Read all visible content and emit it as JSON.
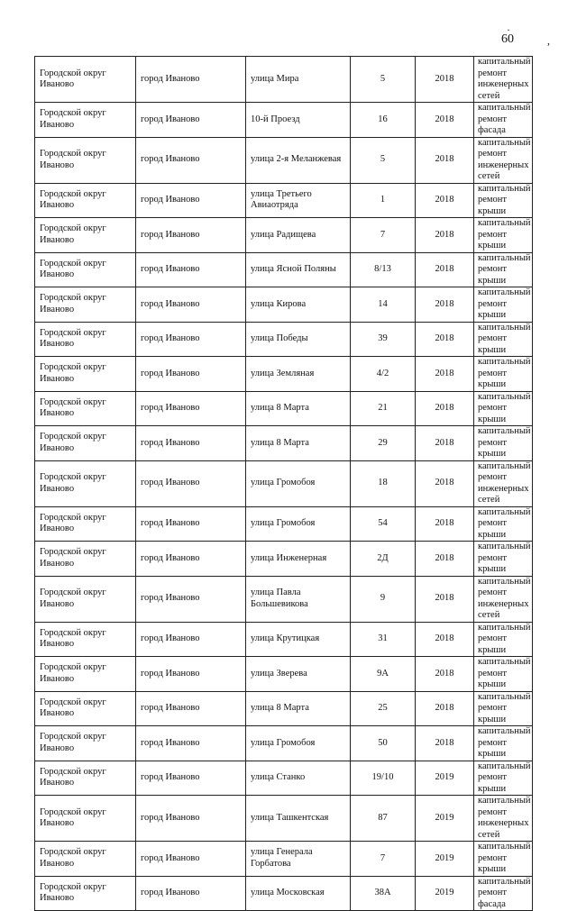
{
  "page_number": "60",
  "rows": [
    {
      "district": "Городской округ Иваново",
      "city": "город Иваново",
      "street": "улица Мира",
      "house": "5",
      "year": "2018",
      "work": "капитальный ремонт инженерных сетей"
    },
    {
      "district": "Городской округ Иваново",
      "city": "город Иваново",
      "street": "10-й Проезд",
      "house": "16",
      "year": "2018",
      "work": "капитальный ремонт фасада"
    },
    {
      "district": "Городской округ Иваново",
      "city": "город Иваново",
      "street": "улица 2-я Меланжевая",
      "house": "5",
      "year": "2018",
      "work": "капитальный ремонт инженерных сетей"
    },
    {
      "district": "Городской округ Иваново",
      "city": "город Иваново",
      "street": "улица Третьего Авиаотряда",
      "house": "1",
      "year": "2018",
      "work": "капитальный ремонт крыши"
    },
    {
      "district": "Городской округ Иваново",
      "city": "город Иваново",
      "street": "улица Радищева",
      "house": "7",
      "year": "2018",
      "work": "капитальный ремонт крыши"
    },
    {
      "district": "Городской округ Иваново",
      "city": "город Иваново",
      "street": "улица Ясной Поляны",
      "house": "8/13",
      "year": "2018",
      "work": "капитальный ремонт крыши"
    },
    {
      "district": "Городской округ Иваново",
      "city": "город Иваново",
      "street": "улица Кирова",
      "house": "14",
      "year": "2018",
      "work": "капитальный ремонт крыши"
    },
    {
      "district": "Городской округ Иваново",
      "city": "город Иваново",
      "street": "улица Победы",
      "house": "39",
      "year": "2018",
      "work": "капитальный ремонт крыши"
    },
    {
      "district": "Городской округ Иваново",
      "city": "город Иваново",
      "street": "улица Земляная",
      "house": "4/2",
      "year": "2018",
      "work": "капитальный ремонт крыши"
    },
    {
      "district": "Городской округ Иваново",
      "city": "город Иваново",
      "street": "улица 8 Марта",
      "house": "21",
      "year": "2018",
      "work": "капитальный ремонт крыши"
    },
    {
      "district": "Городской округ Иваново",
      "city": "город Иваново",
      "street": "улица 8 Марта",
      "house": "29",
      "year": "2018",
      "work": "капитальный ремонт крыши"
    },
    {
      "district": "Городской округ Иваново",
      "city": "город Иваново",
      "street": "улица Громобоя",
      "house": "18",
      "year": "2018",
      "work": "капитальный ремонт инженерных сетей"
    },
    {
      "district": "Городской округ Иваново",
      "city": "город Иваново",
      "street": "улица Громобоя",
      "house": "54",
      "year": "2018",
      "work": "капитальный ремонт крыши"
    },
    {
      "district": "Городской округ Иваново",
      "city": "город Иваново",
      "street": "улица Инженерная",
      "house": "2Д",
      "year": "2018",
      "work": "капитальный ремонт крыши"
    },
    {
      "district": "Городской округ Иваново",
      "city": "город Иваново",
      "street": "улица Павла Большевикова",
      "house": "9",
      "year": "2018",
      "work": "капитальный ремонт инженерных сетей"
    },
    {
      "district": "Городской округ Иваново",
      "city": "город Иваново",
      "street": "улица Крутицкая",
      "house": "31",
      "year": "2018",
      "work": "капитальный ремонт крыши"
    },
    {
      "district": "Городской округ Иваново",
      "city": "город Иваново",
      "street": "улица Зверева",
      "house": "9А",
      "year": "2018",
      "work": "капитальный ремонт крыши"
    },
    {
      "district": "Городской округ Иваново",
      "city": "город Иваново",
      "street": "улица 8 Марта",
      "house": "25",
      "year": "2018",
      "work": "капитальный ремонт крыши"
    },
    {
      "district": "Городской округ Иваново",
      "city": "город Иваново",
      "street": "улица Громобоя",
      "house": "50",
      "year": "2018",
      "work": "капитальный ремонт крыши"
    },
    {
      "district": "Городской округ Иваново",
      "city": "город Иваново",
      "street": "улица Станко",
      "house": "19/10",
      "year": "2019",
      "work": "капитальный ремонт крыши"
    },
    {
      "district": "Городской округ Иваново",
      "city": "город Иваново",
      "street": "улица Ташкентская",
      "house": "87",
      "year": "2019",
      "work": "капитальный ремонт инженерных сетей"
    },
    {
      "district": "Городской округ Иваново",
      "city": "город Иваново",
      "street": "улица Генерала Горбатова",
      "house": "7",
      "year": "2019",
      "work": "капитальный ремонт крыши"
    },
    {
      "district": "Городской округ Иваново",
      "city": "город Иваново",
      "street": "улица Московская",
      "house": "38А",
      "year": "2019",
      "work": "капитальный ремонт фасада"
    }
  ]
}
